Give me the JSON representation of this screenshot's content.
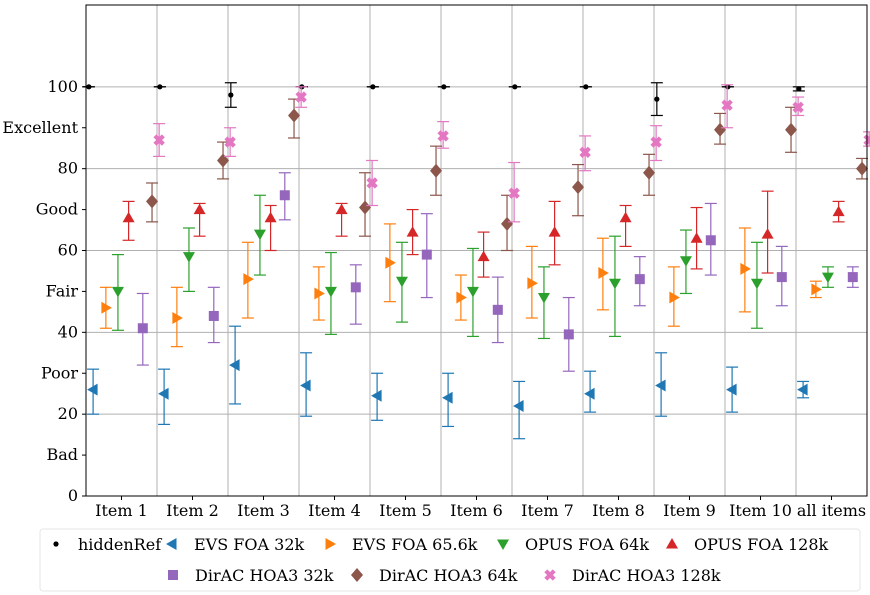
{
  "chart_data": {
    "type": "errorbar",
    "title": "",
    "xlabel": "",
    "ylabel": "",
    "ylim": [
      0,
      120
    ],
    "grid": true,
    "legend_position": "bottom",
    "categories": [
      "Item 1",
      "Item 2",
      "Item 3",
      "Item 4",
      "Item 5",
      "Item 6",
      "Item 7",
      "Item 8",
      "Item 9",
      "Item 10",
      "all items"
    ],
    "y_ticks": [
      {
        "value": 0,
        "label": "0"
      },
      {
        "value": 10,
        "label": "Bad"
      },
      {
        "value": 20,
        "label": "20"
      },
      {
        "value": 30,
        "label": "Poor"
      },
      {
        "value": 40,
        "label": "40"
      },
      {
        "value": 50,
        "label": "Fair"
      },
      {
        "value": 60,
        "label": "60"
      },
      {
        "value": 70,
        "label": "Good"
      },
      {
        "value": 80,
        "label": "80"
      },
      {
        "value": 90,
        "label": "Excellent"
      },
      {
        "value": 100,
        "label": "100"
      }
    ],
    "series": [
      {
        "name": "hiddenRef",
        "color": "#000000",
        "marker": "point",
        "values": [
          100,
          100,
          98,
          100,
          100,
          100,
          100,
          100,
          97,
          100,
          99.5
        ],
        "lower": [
          100,
          100,
          95,
          100,
          100,
          100,
          100,
          100,
          93,
          100,
          99
        ],
        "upper": [
          100,
          100,
          101,
          100,
          100,
          100,
          100,
          100,
          101,
          100,
          100
        ]
      },
      {
        "name": "EVS FOA 32k",
        "color": "#1f77b4",
        "marker": "triangle-left",
        "values": [
          26,
          25,
          32,
          27,
          24.5,
          24,
          22,
          25,
          27,
          26,
          26
        ],
        "lower": [
          20,
          17.5,
          22.5,
          19.5,
          18.5,
          17,
          14,
          20.5,
          19.5,
          20.5,
          24
        ],
        "upper": [
          31,
          31,
          41.5,
          35,
          30,
          30,
          28,
          30.5,
          35,
          31.5,
          28
        ]
      },
      {
        "name": "EVS FOA 65.6k",
        "color": "#ff7f0e",
        "marker": "triangle-right",
        "values": [
          46,
          43.5,
          53,
          49.5,
          57,
          48.5,
          52,
          54.5,
          48.5,
          55.5,
          50.5
        ],
        "lower": [
          41,
          36.5,
          43.5,
          43,
          47.5,
          43,
          43.5,
          45.5,
          41.5,
          45,
          48.5
        ],
        "upper": [
          51,
          51,
          62,
          56,
          66.5,
          54,
          61,
          63,
          56,
          65.5,
          52.5
        ]
      },
      {
        "name": "OPUS FOA 64k",
        "color": "#2ca02c",
        "marker": "triangle-down",
        "values": [
          50,
          58.5,
          64,
          50,
          52.5,
          50,
          48.5,
          52,
          57.5,
          52,
          53.5
        ],
        "lower": [
          40.5,
          50,
          54,
          39.5,
          42.5,
          39,
          38.5,
          39,
          49.5,
          41,
          51
        ],
        "upper": [
          59,
          65.5,
          73.5,
          59.5,
          62,
          60.5,
          56,
          63.5,
          65,
          62,
          56
        ]
      },
      {
        "name": "OPUS FOA 128k",
        "color": "#d62728",
        "marker": "triangle-up",
        "values": [
          68,
          70,
          68,
          70,
          64.5,
          58.5,
          64.5,
          68,
          63,
          64,
          69.5
        ],
        "lower": [
          62.5,
          63.5,
          60,
          63.5,
          59,
          53.5,
          56.5,
          61,
          55.5,
          54.5,
          67
        ],
        "upper": [
          72,
          71.5,
          71,
          71.5,
          70,
          64.5,
          72,
          71,
          70.5,
          74.5,
          72
        ]
      },
      {
        "name": "DirAC HOA3 32k",
        "color": "#9467bd",
        "marker": "square",
        "values": [
          41,
          44,
          73.5,
          51,
          59,
          45.5,
          39.5,
          53,
          62.5,
          53.5,
          53.5
        ],
        "lower": [
          32,
          37.5,
          67.5,
          42,
          48.5,
          37.5,
          30.5,
          46.5,
          54,
          46.5,
          51
        ],
        "upper": [
          49.5,
          51,
          79,
          56.5,
          69,
          53.5,
          48.5,
          58.5,
          71.5,
          61,
          56
        ]
      },
      {
        "name": "DirAC HOA3 64k",
        "color": "#8c564b",
        "marker": "diamond",
        "values": [
          72,
          82,
          93,
          70.5,
          79.5,
          66.5,
          75.5,
          79,
          89.5,
          89.5,
          80
        ],
        "lower": [
          67,
          77.5,
          87.5,
          63.5,
          73.5,
          60,
          68.5,
          73.5,
          86,
          84,
          77.5
        ],
        "upper": [
          76.5,
          86.5,
          97,
          79,
          85.5,
          73.5,
          81,
          83.5,
          93.5,
          95,
          82.5
        ]
      },
      {
        "name": "DirAC HOA3 128k",
        "color": "#e377c2",
        "marker": "cross",
        "values": [
          87,
          86.5,
          97.5,
          76.5,
          88,
          74,
          84,
          86.5,
          95.5,
          95,
          87
        ],
        "lower": [
          83,
          83,
          95,
          71,
          85,
          67,
          79.5,
          82,
          90,
          93,
          85.5
        ],
        "upper": [
          91,
          90,
          100,
          82,
          91.5,
          81.5,
          88,
          90.5,
          100.5,
          97.5,
          89
        ]
      }
    ]
  }
}
